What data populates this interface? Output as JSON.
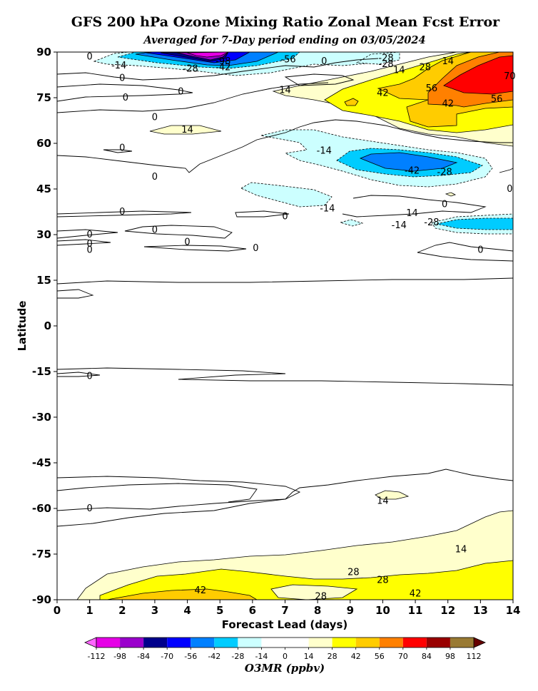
{
  "chart_data": {
    "type": "contour",
    "title": "GFS 200 hPa Ozone Mixing Ratio Zonal Mean Fcst Error",
    "subtitle": "Averaged for 7-Day period ending on 03/05/2024",
    "xlabel": "Forecast Lead (days)",
    "ylabel": "Latitude",
    "xlim": [
      0,
      14
    ],
    "ylim": [
      -90,
      90
    ],
    "x_ticks": [
      0,
      1,
      2,
      3,
      4,
      5,
      6,
      7,
      8,
      9,
      10,
      11,
      12,
      13,
      14
    ],
    "y_ticks": [
      90,
      75,
      60,
      45,
      30,
      15,
      0,
      -15,
      -30,
      -45,
      -60,
      -75,
      -90
    ],
    "colorbar": {
      "title": "O3MR (ppbv)",
      "levels": [
        -112,
        -98,
        -84,
        -70,
        -56,
        -42,
        -28,
        -14,
        0,
        14,
        28,
        42,
        56,
        70,
        84,
        98,
        112
      ],
      "colors": [
        "#e600e6",
        "#9a00cc",
        "#00008b",
        "#0000ff",
        "#0080ff",
        "#00ccff",
        "#ccffff",
        "#ffffff",
        "#ffffff",
        "#ffffcc",
        "#ffff00",
        "#ffcc00",
        "#ff8000",
        "#ff0000",
        "#990000",
        "#997a33"
      ],
      "under_color": "#ff66ff",
      "over_color": "#660000"
    },
    "contour_labels": [
      {
        "x": 1.0,
        "y": 88.5,
        "label": "0"
      },
      {
        "x": 1.9,
        "y": 85.5,
        "label": "-14"
      },
      {
        "x": 2.0,
        "y": 81.5,
        "label": "0"
      },
      {
        "x": 4.1,
        "y": 84.5,
        "label": "-28"
      },
      {
        "x": 5.1,
        "y": 87.0,
        "label": "-98"
      },
      {
        "x": 5.1,
        "y": 85.0,
        "label": "-42"
      },
      {
        "x": 7.1,
        "y": 87.5,
        "label": "-56"
      },
      {
        "x": 8.2,
        "y": 87.0,
        "label": "0"
      },
      {
        "x": 10.1,
        "y": 88.0,
        "label": "-28"
      },
      {
        "x": 10.1,
        "y": 86.0,
        "label": "-28"
      },
      {
        "x": 10.5,
        "y": 84.0,
        "label": "14"
      },
      {
        "x": 11.3,
        "y": 85.0,
        "label": "28"
      },
      {
        "x": 12.0,
        "y": 87.0,
        "label": "14"
      },
      {
        "x": 13.9,
        "y": 82.0,
        "label": "70"
      },
      {
        "x": 2.1,
        "y": 75.0,
        "label": "0"
      },
      {
        "x": 3.8,
        "y": 77.0,
        "label": "0"
      },
      {
        "x": 7.0,
        "y": 77.5,
        "label": "14"
      },
      {
        "x": 10.0,
        "y": 76.5,
        "label": "42"
      },
      {
        "x": 11.5,
        "y": 78.0,
        "label": "56"
      },
      {
        "x": 12.0,
        "y": 73.0,
        "label": "42"
      },
      {
        "x": 13.5,
        "y": 74.5,
        "label": "56"
      },
      {
        "x": 3.0,
        "y": 68.5,
        "label": "0"
      },
      {
        "x": 4.0,
        "y": 64.5,
        "label": "14"
      },
      {
        "x": 2.0,
        "y": 58.5,
        "label": "0"
      },
      {
        "x": 8.2,
        "y": 57.5,
        "label": "-14"
      },
      {
        "x": 10.9,
        "y": 51.0,
        "label": "-42"
      },
      {
        "x": 11.9,
        "y": 50.5,
        "label": "-28"
      },
      {
        "x": 3.0,
        "y": 49.0,
        "label": "0"
      },
      {
        "x": 13.9,
        "y": 45.0,
        "label": "0"
      },
      {
        "x": 8.3,
        "y": 38.5,
        "label": "-14"
      },
      {
        "x": 10.9,
        "y": 37.0,
        "label": "14"
      },
      {
        "x": 11.9,
        "y": 40.0,
        "label": "0"
      },
      {
        "x": 2.0,
        "y": 37.5,
        "label": "0"
      },
      {
        "x": 7.0,
        "y": 36.0,
        "label": "0"
      },
      {
        "x": 10.5,
        "y": 33.0,
        "label": "-14"
      },
      {
        "x": 11.5,
        "y": 34.0,
        "label": "-28"
      },
      {
        "x": 1.0,
        "y": 30.0,
        "label": "0"
      },
      {
        "x": 1.0,
        "y": 27.0,
        "label": "0"
      },
      {
        "x": 1.0,
        "y": 25.0,
        "label": "0"
      },
      {
        "x": 3.0,
        "y": 31.5,
        "label": "0"
      },
      {
        "x": 4.0,
        "y": 27.5,
        "label": "0"
      },
      {
        "x": 6.1,
        "y": 25.5,
        "label": "0"
      },
      {
        "x": 13.0,
        "y": 25.0,
        "label": "0"
      },
      {
        "x": 1.0,
        "y": -16.5,
        "label": "0"
      },
      {
        "x": 1.0,
        "y": -60.0,
        "label": "0"
      },
      {
        "x": 10.0,
        "y": -57.5,
        "label": "14"
      },
      {
        "x": 12.4,
        "y": -73.5,
        "label": "14"
      },
      {
        "x": 9.1,
        "y": -81.0,
        "label": "28"
      },
      {
        "x": 10.0,
        "y": -83.5,
        "label": "28"
      },
      {
        "x": 8.1,
        "y": -89.0,
        "label": "28"
      },
      {
        "x": 4.4,
        "y": -87.0,
        "label": "42"
      },
      {
        "x": 11.0,
        "y": -88.0,
        "label": "42"
      }
    ]
  }
}
